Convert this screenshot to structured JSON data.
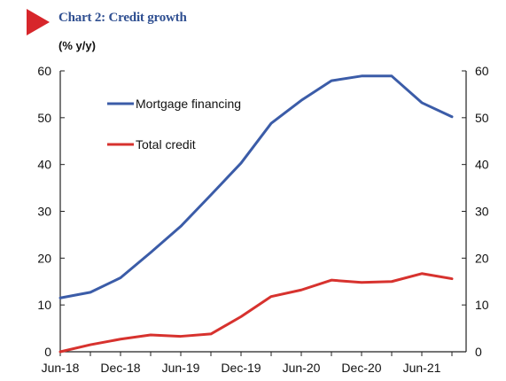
{
  "header": {
    "title": "Chart 2: Credit growth",
    "unit": "(% y/y)"
  },
  "colors": {
    "accent_triangle": "#d7262b",
    "title": "#2f4f91",
    "mortgage": "#3b5ca8",
    "total": "#d7322e"
  },
  "chart_data": {
    "type": "line",
    "title": "Chart 2: Credit growth",
    "ylabel": "(% y/y)",
    "xlabel": "",
    "x": [
      "Jun-18",
      "Sep-18",
      "Dec-18",
      "Mar-19",
      "Jun-19",
      "Sep-19",
      "Dec-19",
      "Mar-20",
      "Jun-20",
      "Sep-20",
      "Dec-20",
      "Mar-21",
      "Jun-21",
      "Aug-21"
    ],
    "x_tick_labels": [
      "Jun-18",
      "Dec-18",
      "Jun-19",
      "Dec-19",
      "Jun-20",
      "Dec-20",
      "Jun-21"
    ],
    "series": [
      {
        "name": "Mortgage financing",
        "color": "#3b5ca8",
        "values": [
          11.5,
          12.7,
          15.8,
          21.2,
          26.8,
          33.5,
          40.3,
          48.8,
          53.7,
          57.9,
          58.9,
          58.9,
          53.2,
          50.2
        ]
      },
      {
        "name": "Total credit",
        "color": "#d7322e",
        "values": [
          0.0,
          1.5,
          2.7,
          3.6,
          3.3,
          3.8,
          7.5,
          11.8,
          13.2,
          15.3,
          14.8,
          15.0,
          16.7,
          15.6
        ]
      }
    ],
    "ylim": [
      0,
      60
    ],
    "yticks": [
      0,
      10,
      20,
      30,
      40,
      50,
      60
    ],
    "right_axis": true,
    "grid": false,
    "legend_position": "upper-left inside plot"
  }
}
